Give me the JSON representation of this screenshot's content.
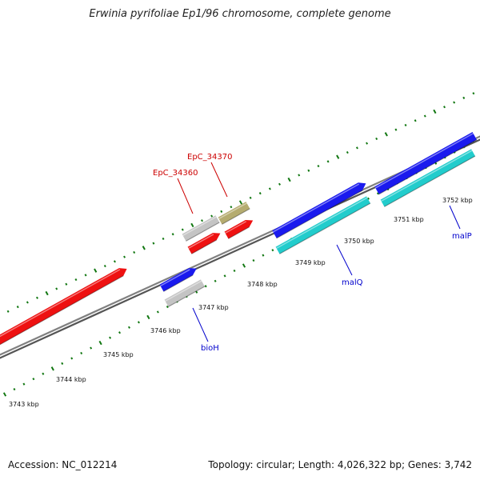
{
  "title": "Erwinia pyrifoliae Ep1/96 chromosome, complete genome",
  "footer": {
    "accession": "Accession: NC_012214",
    "summary": "Topology: circular; Length: 4,026,322 bp; Genes: 3,742"
  },
  "colors": {
    "red": "#ee1111",
    "blue": "#1a1aee",
    "cyan": "#22cccc",
    "gray": "#c4c4c4",
    "olive": "#b5ac70",
    "backbone": "#808080",
    "ticks": "#117711",
    "label_red": "#cc0000",
    "label_blue": "#0000cc"
  },
  "kbp_ticks": [
    "3743 kbp",
    "3744 kbp",
    "3745 kbp",
    "3746 kbp",
    "3747 kbp",
    "3748 kbp",
    "3749 kbp",
    "3750 kbp",
    "3751 kbp",
    "3752 kbp"
  ],
  "gene_labels": [
    {
      "text": "EpC_34370",
      "color": "label_red"
    },
    {
      "text": "EpC_34360",
      "color": "label_red"
    },
    {
      "text": "bioH",
      "color": "label_blue"
    },
    {
      "text": "malQ",
      "color": "label_blue"
    },
    {
      "text": "malP",
      "color": "label_blue"
    }
  ]
}
